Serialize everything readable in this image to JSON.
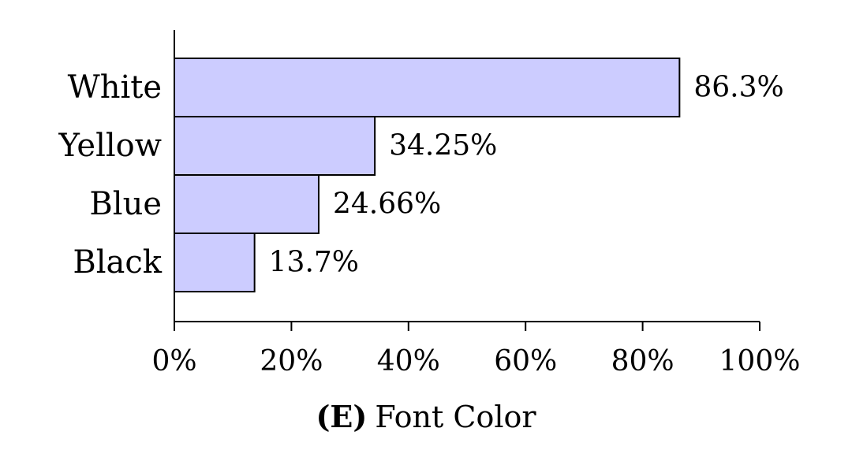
{
  "chart_data": {
    "type": "bar",
    "orientation": "horizontal",
    "categories": [
      "White",
      "Yellow",
      "Blue",
      "Black"
    ],
    "values": [
      86.3,
      34.25,
      24.66,
      13.7
    ],
    "value_labels": [
      "86.3%",
      "34.25%",
      "24.66%",
      "13.7%"
    ],
    "xlim": [
      0,
      100
    ],
    "x_ticks": [
      0,
      20,
      40,
      60,
      80,
      100
    ],
    "x_tick_labels": [
      "0%",
      "20%",
      "40%",
      "60%",
      "80%",
      "100%"
    ],
    "caption_letter": "(E)",
    "caption_text": "Font Color",
    "bar_color": "#ccccff",
    "bar_edge_color": "#000000",
    "grid": false,
    "legend": "none"
  }
}
